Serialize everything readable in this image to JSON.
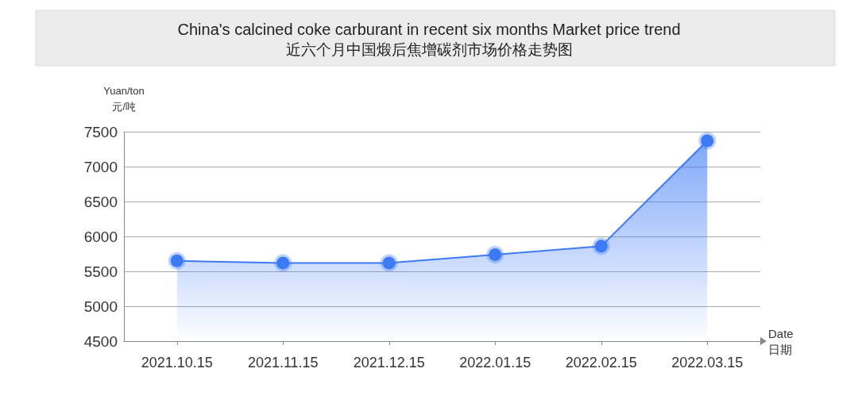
{
  "chart_data": {
    "type": "area",
    "title": "China's calcined coke carburant in recent six months Market price trend",
    "subtitle": "近六个月中国煅后焦增碳剂市场价格走势图",
    "xlabel": "Date\n日期",
    "ylabel": "Yuan/ton\n元/吨",
    "categories": [
      "2021.10.15",
      "2021.11.15",
      "2021.12.15",
      "2022.01.15",
      "2022.02.15",
      "2022.03.15"
    ],
    "series": [
      {
        "color": "#3d7af5",
        "values": [
          5650,
          5620,
          5620,
          5740,
          5860,
          7370
        ]
      }
    ],
    "ylim": [
      4500,
      7500
    ],
    "yticks": [
      4500,
      5000,
      5500,
      6000,
      6500,
      7000,
      7500
    ],
    "grid": "y",
    "marker": "circle",
    "line_style": "solid"
  }
}
